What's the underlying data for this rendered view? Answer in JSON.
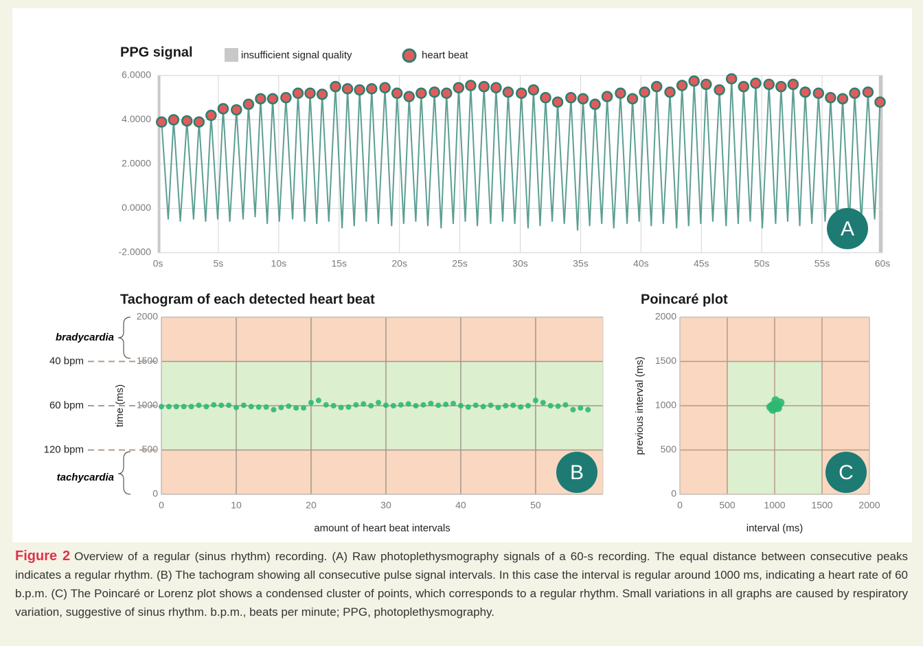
{
  "chart_data": [
    {
      "type": "line",
      "title": "PPG signal",
      "panel": "A",
      "xlim": [
        0,
        60
      ],
      "xticks": [
        {
          "value": 0,
          "label": "0s"
        },
        {
          "value": 5,
          "label": "5s"
        },
        {
          "value": 10,
          "label": "10s"
        },
        {
          "value": 15,
          "label": "15s"
        },
        {
          "value": 20,
          "label": "20s"
        },
        {
          "value": 25,
          "label": "25s"
        },
        {
          "value": 30,
          "label": "30s"
        },
        {
          "value": 35,
          "label": "35s"
        },
        {
          "value": 40,
          "label": "40s"
        },
        {
          "value": 45,
          "label": "45s"
        },
        {
          "value": 50,
          "label": "50s"
        },
        {
          "value": 55,
          "label": "55s"
        },
        {
          "value": 60,
          "label": "60s"
        }
      ],
      "ylim": [
        -2,
        6
      ],
      "yticks": [
        {
          "value": -2,
          "label": "-2.0000"
        },
        {
          "value": 0,
          "label": "0.0000"
        },
        {
          "value": 2,
          "label": "2.0000"
        },
        {
          "value": 4,
          "label": "4.0000"
        },
        {
          "value": 6,
          "label": "6.0000"
        }
      ],
      "grid": true,
      "insufficient_signal_quality": {
        "name": "insufficient signal quality",
        "color": "#c8c8c8",
        "ranges": [
          [
            0,
            0.2
          ],
          [
            59.7,
            60
          ]
        ]
      },
      "series": [
        {
          "name": "heart beat",
          "color": "#e05c5c",
          "x": [
            0.3,
            1.3,
            2.4,
            3.4,
            4.4,
            5.4,
            6.5,
            7.5,
            8.5,
            9.5,
            10.6,
            11.6,
            12.6,
            13.6,
            14.7,
            15.7,
            16.7,
            17.7,
            18.8,
            19.8,
            20.8,
            21.8,
            22.9,
            23.9,
            24.9,
            25.9,
            27.0,
            28.0,
            29.0,
            30.1,
            31.1,
            32.1,
            33.1,
            34.2,
            35.2,
            36.2,
            37.2,
            38.3,
            39.3,
            40.3,
            41.3,
            42.4,
            43.4,
            44.4,
            45.4,
            46.5,
            47.5,
            48.5,
            49.5,
            50.6,
            51.6,
            52.6,
            53.6,
            54.7,
            55.7,
            56.7,
            57.7,
            58.8,
            59.8
          ],
          "values": [
            3.9,
            4.0,
            3.95,
            3.9,
            4.2,
            4.5,
            4.45,
            4.7,
            4.95,
            4.95,
            5.0,
            5.2,
            5.2,
            5.15,
            5.5,
            5.4,
            5.35,
            5.4,
            5.45,
            5.2,
            5.05,
            5.2,
            5.25,
            5.2,
            5.45,
            5.55,
            5.5,
            5.45,
            5.25,
            5.2,
            5.35,
            5.0,
            4.8,
            5.0,
            4.95,
            4.7,
            5.05,
            5.2,
            4.95,
            5.25,
            5.5,
            5.25,
            5.55,
            5.75,
            5.6,
            5.35,
            5.85,
            5.5,
            5.65,
            5.6,
            5.5,
            5.6,
            5.25,
            5.2,
            5.0,
            4.95,
            5.2,
            5.25,
            4.8
          ]
        },
        {
          "color": "#5b9e92",
          "x": [
            0.85,
            1.85,
            2.95,
            3.95,
            4.95,
            5.95,
            7.05,
            8.05,
            9.05,
            10.05,
            11.15,
            12.15,
            13.15,
            14.15,
            15.25,
            16.25,
            17.25,
            18.25,
            19.35,
            20.35,
            21.35,
            22.35,
            23.45,
            24.45,
            25.45,
            26.45,
            27.55,
            28.55,
            29.55,
            30.65,
            31.65,
            32.65,
            33.65,
            34.75,
            35.75,
            36.75,
            37.75,
            38.85,
            39.85,
            40.85,
            41.85,
            42.95,
            43.95,
            44.95,
            45.95,
            47.05,
            48.05,
            49.05,
            50.05,
            51.15,
            52.15,
            53.15,
            54.15,
            55.25,
            56.25,
            57.25,
            58.25,
            59.35
          ],
          "values": [
            -0.5,
            -0.6,
            -0.5,
            -0.6,
            -0.5,
            -0.6,
            -0.5,
            -0.4,
            -0.7,
            -0.6,
            -0.5,
            -0.6,
            -0.7,
            -0.6,
            -0.9,
            -0.8,
            -0.6,
            -0.7,
            -0.8,
            -0.7,
            -0.6,
            -0.8,
            -0.9,
            -0.7,
            -0.6,
            -0.8,
            -0.7,
            -0.6,
            -0.7,
            -0.9,
            -0.8,
            -0.6,
            -0.7,
            -1.0,
            -0.8,
            -0.7,
            -0.9,
            -0.7,
            -0.6,
            -0.8,
            -0.7,
            -0.9,
            -0.8,
            -0.7,
            -0.6,
            -0.8,
            -0.7,
            -0.6,
            -0.9,
            -0.7,
            -0.6,
            -0.8,
            -0.7,
            -0.6,
            -0.8,
            -0.7,
            -0.6,
            -0.5
          ]
        }
      ]
    },
    {
      "type": "scatter",
      "title": "Tachogram of each detected heart beat",
      "panel": "B",
      "xlabel": "amount of heart beat intervals",
      "ylabel": "time (ms)",
      "xlim": [
        0,
        59
      ],
      "xticks": [
        0,
        10,
        20,
        30,
        40,
        50
      ],
      "ylim": [
        0,
        2000
      ],
      "yticks": [
        0,
        500,
        1000,
        1500,
        2000
      ],
      "grid": true,
      "zones": [
        {
          "label": "bradycardia",
          "from": 1500,
          "to": 2000,
          "color": "#f9d7c0"
        },
        {
          "from": 500,
          "to": 1500,
          "color": "#dcefcf"
        },
        {
          "label": "tachycardia",
          "from": 0,
          "to": 500,
          "color": "#f9d7c0"
        }
      ],
      "reference_lines": [
        {
          "value": 1500,
          "label": "40 bpm"
        },
        {
          "value": 1000,
          "label": "60 bpm"
        },
        {
          "value": 500,
          "label": "120 bpm"
        }
      ],
      "series": [
        {
          "color": "#2db872",
          "x": [
            0,
            1,
            2,
            3,
            4,
            5,
            6,
            7,
            8,
            9,
            10,
            11,
            12,
            13,
            14,
            15,
            16,
            17,
            18,
            19,
            20,
            21,
            22,
            23,
            24,
            25,
            26,
            27,
            28,
            29,
            30,
            31,
            32,
            33,
            34,
            35,
            36,
            37,
            38,
            39,
            40,
            41,
            42,
            43,
            44,
            45,
            46,
            47,
            48,
            49,
            50,
            51,
            52,
            53,
            54,
            55,
            56,
            57
          ],
          "values": [
            990,
            990,
            990,
            990,
            990,
            1005,
            990,
            1010,
            1005,
            1005,
            980,
            1005,
            990,
            985,
            985,
            955,
            980,
            995,
            975,
            975,
            1035,
            1060,
            1010,
            1000,
            980,
            985,
            1010,
            1020,
            1000,
            1035,
            1005,
            1000,
            1010,
            1020,
            1000,
            1010,
            1025,
            1005,
            1015,
            1025,
            1000,
            985,
            1005,
            990,
            1005,
            980,
            1000,
            1005,
            985,
            1000,
            1060,
            1035,
            1000,
            995,
            1010,
            955,
            975,
            955
          ]
        }
      ]
    },
    {
      "type": "scatter",
      "title": "Poincaré plot",
      "panel": "C",
      "xlabel": "interval (ms)",
      "ylabel": "previous interval (ms)",
      "xlim": [
        0,
        2000
      ],
      "xticks": [
        0,
        500,
        1000,
        1500,
        2000
      ],
      "ylim": [
        0,
        2000
      ],
      "yticks": [
        0,
        500,
        1000,
        1500,
        2000
      ],
      "grid": true,
      "zones": [
        {
          "x": [
            0,
            2000
          ],
          "y": [
            0,
            2000
          ],
          "color": "#f9d7c0"
        },
        {
          "x": [
            500,
            1500
          ],
          "y": [
            0,
            1500
          ],
          "color": "#dcefcf"
        }
      ],
      "series": [
        {
          "color": "#2db872",
          "x": [
            990,
            990,
            1005,
            990,
            1010,
            1005,
            980,
            1005,
            985,
            955,
            980,
            995,
            975,
            1035,
            1060,
            1010,
            1000,
            1020,
            1035,
            1025
          ],
          "values": [
            990,
            990,
            990,
            1005,
            990,
            1010,
            1005,
            980,
            990,
            985,
            955,
            980,
            995,
            975,
            1035,
            1060,
            1010,
            1000,
            1000,
            1005
          ]
        }
      ]
    }
  ],
  "caption": {
    "label": "Figure 2",
    "text": "Overview of a regular (sinus rhythm) recording. (A) Raw photoplethysmography signals of a 60-s recording. The equal distance between consecutive peaks indicates a regular rhythm. (B) The tachogram showing all consecutive pulse signal intervals. In this case the interval is regular around 1000 ms, indicating a heart rate of 60 b.p.m. (C) The Poincaré or Lorenz plot shows a condensed cluster of points, which corresponds to a regular rhythm. Small variations in all graphs are caused by respiratory variation, suggestive of sinus rhythm. b.p.m., beats per minute; PPG, photoplethysmography."
  }
}
